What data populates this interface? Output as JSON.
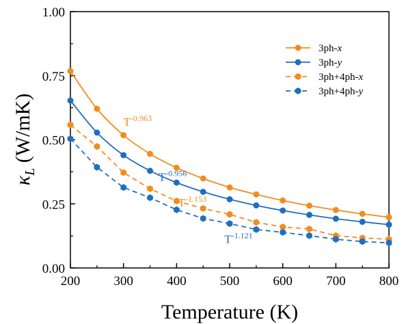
{
  "chart_data": {
    "type": "line",
    "title": "",
    "xlabel": "Temperature (K)",
    "ylabel": {
      "symbol": "κ",
      "subscript": "L",
      "unit": " (W/mK)"
    },
    "xlim": [
      200,
      800
    ],
    "ylim": [
      0,
      1.0
    ],
    "xticks": [
      200,
      300,
      400,
      500,
      600,
      700,
      800
    ],
    "yticks": [
      0.0,
      0.25,
      0.5,
      0.75,
      1.0
    ],
    "xtick_labels": [
      "200",
      "300",
      "400",
      "500",
      "600",
      "700",
      "800"
    ],
    "ytick_labels": [
      "0.00",
      "0.25",
      "0.50",
      "0.75",
      "1.00"
    ],
    "grid": false,
    "legend_position": "top-right",
    "x": [
      200,
      250,
      300,
      350,
      400,
      450,
      500,
      550,
      600,
      650,
      700,
      750,
      800
    ],
    "series": [
      {
        "name": {
          "base": "3ph-",
          "italic": "x"
        },
        "color": "#f28c1e",
        "dash": "solid",
        "marker": "circle",
        "values": [
          0.768,
          0.621,
          0.518,
          0.445,
          0.391,
          0.349,
          0.314,
          0.287,
          0.263,
          0.243,
          0.226,
          0.211,
          0.198
        ]
      },
      {
        "name": {
          "base": "3ph-",
          "italic": "y"
        },
        "color": "#1f6fbf",
        "dash": "solid",
        "marker": "circle",
        "values": [
          0.653,
          0.528,
          0.44,
          0.379,
          0.333,
          0.297,
          0.268,
          0.244,
          0.224,
          0.207,
          0.192,
          0.18,
          0.169
        ]
      },
      {
        "name": {
          "base": "3ph+4ph-",
          "italic": "x"
        },
        "color": "#f28c1e",
        "dash": "dashed",
        "marker": "hexagon",
        "values": [
          0.558,
          0.474,
          0.372,
          0.309,
          0.261,
          0.232,
          0.209,
          0.178,
          0.16,
          0.152,
          0.126,
          0.117,
          0.112
        ]
      },
      {
        "name": {
          "base": "3ph+4ph-",
          "italic": "y"
        },
        "color": "#1f6fbf",
        "dash": "dashed",
        "marker": "hexagon",
        "values": [
          0.504,
          0.393,
          0.314,
          0.274,
          0.227,
          0.193,
          0.173,
          0.15,
          0.139,
          0.126,
          0.112,
          0.103,
          0.098
        ]
      }
    ],
    "annotations": [
      {
        "base": "T",
        "exponent": "-0.963",
        "color": "#f28c1e",
        "at": [
          300,
          0.555
        ]
      },
      {
        "base": "T",
        "exponent": "-0.956",
        "color": "#1f6fbf",
        "at": [
          366,
          0.34
        ]
      },
      {
        "base": "T",
        "exponent": "-1.153",
        "color": "#f28c1e",
        "at": [
          403,
          0.24
        ]
      },
      {
        "base": "T",
        "exponent": "-1.121",
        "color": "#1f6fbf",
        "at": [
          490,
          0.098
        ]
      }
    ]
  }
}
